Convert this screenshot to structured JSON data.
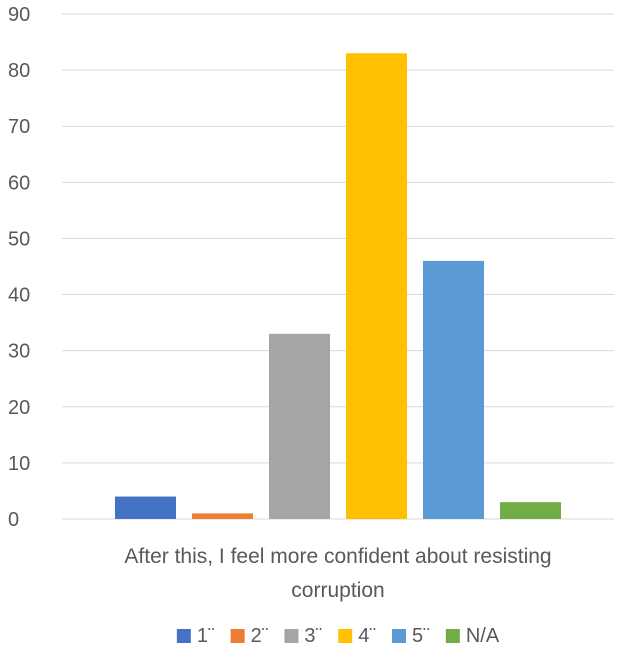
{
  "chart_data": {
    "type": "bar",
    "category_label_lines": [
      "After this, I feel more confident about resisting",
      "corruption"
    ],
    "series": [
      {
        "name": "1¨",
        "color": "#4472C4",
        "values": [
          4
        ]
      },
      {
        "name": "2¨",
        "color": "#ED7D31",
        "values": [
          1
        ]
      },
      {
        "name": "3¨",
        "color": "#A5A5A5",
        "values": [
          33
        ]
      },
      {
        "name": "4¨",
        "color": "#FFC000",
        "values": [
          83
        ]
      },
      {
        "name": "5¨",
        "color": "#5B9BD5",
        "values": [
          46
        ]
      },
      {
        "name": "N/A",
        "color": "#70AD47",
        "values": [
          3
        ]
      }
    ],
    "ylim": [
      0,
      90
    ],
    "yticks": [
      0,
      10,
      20,
      30,
      40,
      50,
      60,
      70,
      80,
      90
    ],
    "grid": true,
    "legend_position": "bottom"
  }
}
